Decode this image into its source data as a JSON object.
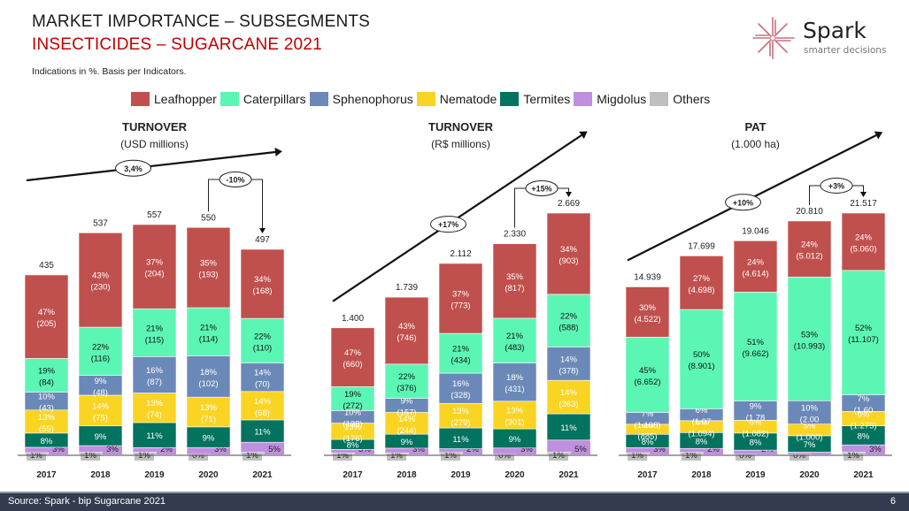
{
  "header": {
    "title_line1": "MARKET IMPORTANCE  – SUBSEGMENTS",
    "title_line2": "INSECTICIDES – SUGARCANE 2021",
    "subtitle": "Indications in %. Basis per Indicators."
  },
  "logo": {
    "name": "Spark",
    "tagline": "smarter decisions",
    "icon": "starburst-icon"
  },
  "colors": {
    "Leafhopper": "#c0504d",
    "Caterpillars": "#5cf6b4",
    "Sphenophorus": "#6b89b8",
    "Nematode": "#f9d423",
    "Termites": "#02735f",
    "Migdolus": "#c08fdf",
    "Others": "#bfbfbf"
  },
  "legend": [
    "Leafhopper",
    "Caterpillars",
    "Sphenophorus",
    "Nematode",
    "Termites",
    "Migdolus",
    "Others"
  ],
  "chart_data": [
    {
      "type": "bar",
      "stacked": true,
      "title": "TURNOVER",
      "subtitle": "(USD millions)",
      "categories": [
        "2017",
        "2018",
        "2019",
        "2020",
        "2021"
      ],
      "totals": [
        "435",
        "537",
        "557",
        "550",
        "497"
      ],
      "total_values": [
        435,
        537,
        557,
        550,
        497
      ],
      "cagr_label": "3,4%",
      "yoy_label": "-10%",
      "series": [
        {
          "name": "Others",
          "pct": [
            "1%",
            "1%",
            "1%",
            "0%",
            "1%"
          ],
          "values": [
            null,
            null,
            null,
            null,
            null
          ]
        },
        {
          "name": "Migdolus",
          "pct": [
            "3%",
            "3%",
            "2%",
            "3%",
            "5%"
          ],
          "values": [
            null,
            null,
            null,
            null,
            null
          ]
        },
        {
          "name": "Termites",
          "pct": [
            "8%",
            "9%",
            "11%",
            "9%",
            "11%"
          ],
          "values": [
            null,
            null,
            null,
            null,
            null
          ]
        },
        {
          "name": "Nematode",
          "pct": [
            "13%",
            "14%",
            "13%",
            "13%",
            "14%"
          ],
          "values": [
            "(55)",
            "(75)",
            "(74)",
            "(71)",
            "(68)"
          ]
        },
        {
          "name": "Sphenophorus",
          "pct": [
            "10%",
            "9%",
            "16%",
            "18%",
            "14%"
          ],
          "values": [
            "(43)",
            "(48)",
            "(87)",
            "(102)",
            "(70)"
          ]
        },
        {
          "name": "Caterpillars",
          "pct": [
            "19%",
            "22%",
            "21%",
            "21%",
            "22%"
          ],
          "values": [
            "(84)",
            "(116)",
            "(115)",
            "(114)",
            "(110)"
          ]
        },
        {
          "name": "Leafhopper",
          "pct": [
            "47%",
            "43%",
            "37%",
            "35%",
            "34%"
          ],
          "values": [
            "(205)",
            "(230)",
            "(204)",
            "(193)",
            "(168)"
          ]
        }
      ]
    },
    {
      "type": "bar",
      "stacked": true,
      "title": "TURNOVER",
      "subtitle": "(R$ millions)",
      "categories": [
        "2017",
        "2018",
        "2019",
        "2020",
        "2021"
      ],
      "totals": [
        "1.400",
        "1.739",
        "2.112",
        "2.330",
        "2.669"
      ],
      "total_values": [
        1400,
        1739,
        2112,
        2330,
        2669
      ],
      "cagr_label": "+17%",
      "yoy_label": "+15%",
      "series": [
        {
          "name": "Others",
          "pct": [
            "1%",
            "1%",
            "1%",
            "0%",
            "1%"
          ],
          "values": [
            null,
            null,
            null,
            null,
            null
          ]
        },
        {
          "name": "Migdolus",
          "pct": [
            "3%",
            "3%",
            "2%",
            "3%",
            "5%"
          ],
          "values": [
            null,
            null,
            null,
            null,
            null
          ]
        },
        {
          "name": "Termites",
          "pct": [
            "8%",
            "9%",
            "11%",
            "9%",
            "11%"
          ],
          "values": [
            null,
            null,
            null,
            null,
            null
          ]
        },
        {
          "name": "Nematode",
          "pct": [
            "13%",
            "14%",
            "13%",
            "13%",
            "14%"
          ],
          "values": [
            "(176)",
            "(244)",
            "(279)",
            "(301)",
            "(363)"
          ]
        },
        {
          "name": "Sphenophorus",
          "pct": [
            "10%",
            "9%",
            "16%",
            "18%",
            "14%"
          ],
          "values": [
            "(138)",
            "(157)",
            "(328)",
            "(431)",
            "(378)"
          ]
        },
        {
          "name": "Caterpillars",
          "pct": [
            "19%",
            "22%",
            "21%",
            "21%",
            "22%"
          ],
          "values": [
            "(272)",
            "(376)",
            "(434)",
            "(483)",
            "(588)"
          ]
        },
        {
          "name": "Leafhopper",
          "pct": [
            "47%",
            "43%",
            "37%",
            "35%",
            "34%"
          ],
          "values": [
            "(660)",
            "(746)",
            "(773)",
            "(817)",
            "(903)"
          ]
        }
      ]
    },
    {
      "type": "bar",
      "stacked": true,
      "title": "PAT",
      "subtitle": "(1.000 ha)",
      "categories": [
        "2017",
        "2018",
        "2019",
        "2020",
        "2021"
      ],
      "totals": [
        "14.939",
        "17.699",
        "19.046",
        "20.810",
        "21.517"
      ],
      "total_values": [
        14939,
        17699,
        19046,
        20810,
        21517
      ],
      "cagr_label": "+10%",
      "yoy_label": "+3%",
      "series": [
        {
          "name": "Others",
          "pct": [
            "1%",
            "1%",
            "0%",
            "0%",
            "1%"
          ],
          "values": [
            null,
            null,
            null,
            null,
            null
          ]
        },
        {
          "name": "Migdolus",
          "pct": [
            "3%",
            "2%",
            "2%",
            "1%",
            "3%"
          ],
          "values": [
            null,
            null,
            null,
            null,
            null
          ]
        },
        {
          "name": "Termites",
          "pct": [
            "8%",
            "8%",
            "8%",
            "7%",
            "8%"
          ],
          "values": [
            null,
            null,
            null,
            null,
            null
          ]
        },
        {
          "name": "Nematode",
          "pct": [
            "6%",
            "6%",
            "6%",
            "5%",
            "6%"
          ],
          "values": [
            "(885)",
            "(1.094)",
            "(1.082)",
            "(1.000)",
            "(1.275)"
          ]
        },
        {
          "name": "Sphenophorus",
          "pct": [
            "7%",
            "6%",
            "9%",
            "10%",
            "7%"
          ],
          "values": [
            "(1.108)",
            "(1.07",
            "(1.78",
            "(2.00",
            "(1.60"
          ]
        },
        {
          "name": "Caterpillars",
          "pct": [
            "45%",
            "50%",
            "51%",
            "53%",
            "52%"
          ],
          "values": [
            "(6.652)",
            "(8.901)",
            "(9.662)",
            "(10.993)",
            "(11.107)"
          ]
        },
        {
          "name": "Leafhopper",
          "pct": [
            "30%",
            "27%",
            "24%",
            "24%",
            "24%"
          ],
          "values": [
            "(4.522)",
            "(4.698)",
            "(4.614)",
            "(5.012)",
            "(5.060)"
          ]
        }
      ]
    }
  ],
  "footer": {
    "source": "Source: Spark - bip Sugarcane 2021",
    "page": "6"
  }
}
